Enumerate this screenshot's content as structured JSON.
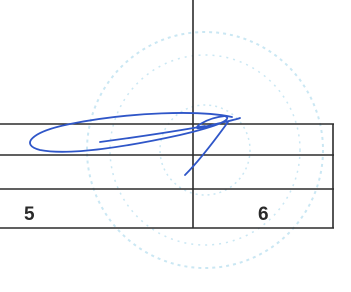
{
  "table": {
    "rows": [
      [
        "5",
        "6"
      ]
    ]
  }
}
